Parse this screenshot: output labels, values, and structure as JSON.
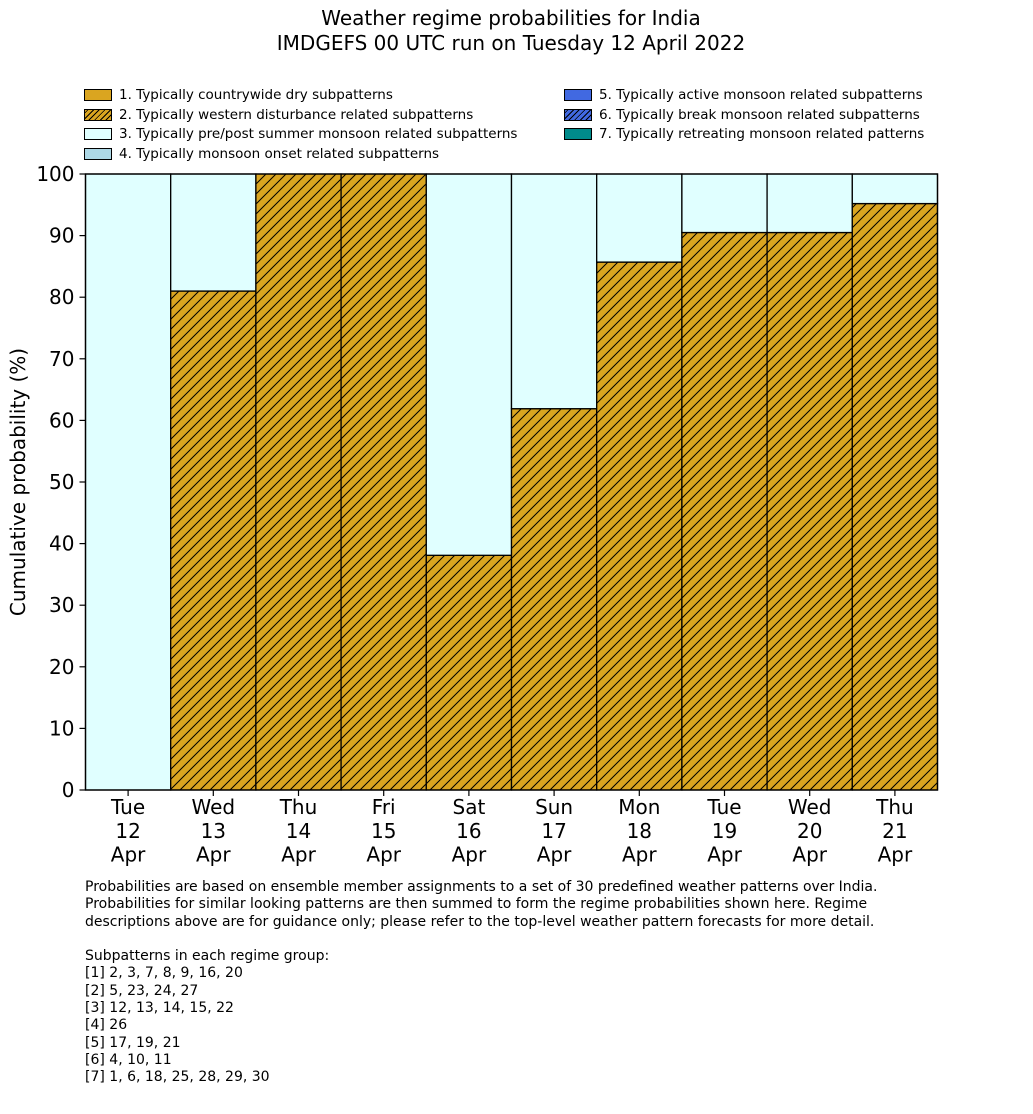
{
  "title_line1": "Weather regime probabilities for India",
  "title_line2": "IMDGEFS 00 UTC run on Tuesday 12 April 2022",
  "legend": [
    {
      "label": "1. Typically countrywide dry subpatterns",
      "color": "#DAA520",
      "hatch": false
    },
    {
      "label": "2. Typically western disturbance related subpatterns",
      "color": "#DAA520",
      "hatch": true
    },
    {
      "label": "3. Typically pre/post summer monsoon related subpatterns",
      "color": "#E0FFFF",
      "hatch": false
    },
    {
      "label": "4. Typically monsoon onset related subpatterns",
      "color": "#ADD8E6",
      "hatch": false
    },
    {
      "label": "5. Typically active monsoon related subpatterns",
      "color": "#4169E1",
      "hatch": false
    },
    {
      "label": "6. Typically break monsoon related subpatterns",
      "color": "#4169E1",
      "hatch": true
    },
    {
      "label": "7. Typically retreating monsoon related patterns",
      "color": "#008B8B",
      "hatch": false
    }
  ],
  "chart_data": {
    "type": "bar",
    "stacked": true,
    "title": "Weather regime probabilities for India\nIMDGEFS 00 UTC run on Tuesday 12 April 2022",
    "ylabel": "Cumulative probability (%)",
    "xlabel": "",
    "ylim": [
      0,
      100
    ],
    "yticks": [
      0,
      10,
      20,
      30,
      40,
      50,
      60,
      70,
      80,
      90,
      100
    ],
    "categories": [
      [
        "Tue",
        "12",
        "Apr"
      ],
      [
        "Wed",
        "13",
        "Apr"
      ],
      [
        "Thu",
        "14",
        "Apr"
      ],
      [
        "Fri",
        "15",
        "Apr"
      ],
      [
        "Sat",
        "16",
        "Apr"
      ],
      [
        "Sun",
        "17",
        "Apr"
      ],
      [
        "Mon",
        "18",
        "Apr"
      ],
      [
        "Tue",
        "19",
        "Apr"
      ],
      [
        "Wed",
        "20",
        "Apr"
      ],
      [
        "Thu",
        "21",
        "Apr"
      ]
    ],
    "series": [
      {
        "name": "1. Typically countrywide dry subpatterns",
        "color": "#DAA520",
        "hatch": false,
        "values": [
          0,
          0,
          0,
          0,
          0,
          0,
          0,
          0,
          0,
          0
        ]
      },
      {
        "name": "2. Typically western disturbance related subpatterns",
        "color": "#DAA520",
        "hatch": true,
        "values": [
          0,
          81,
          100,
          100,
          38.1,
          61.9,
          85.7,
          90.5,
          90.5,
          95.2
        ]
      },
      {
        "name": "3. Typically pre/post summer monsoon related subpatterns",
        "color": "#E0FFFF",
        "hatch": false,
        "values": [
          100,
          19,
          0,
          0,
          61.9,
          38.1,
          14.3,
          9.5,
          9.5,
          4.8
        ]
      },
      {
        "name": "4. Typically monsoon onset related subpatterns",
        "color": "#ADD8E6",
        "hatch": false,
        "values": [
          0,
          0,
          0,
          0,
          0,
          0,
          0,
          0,
          0,
          0
        ]
      },
      {
        "name": "5. Typically active monsoon related subpatterns",
        "color": "#4169E1",
        "hatch": false,
        "values": [
          0,
          0,
          0,
          0,
          0,
          0,
          0,
          0,
          0,
          0
        ]
      },
      {
        "name": "6. Typically break monsoon related subpatterns",
        "color": "#4169E1",
        "hatch": true,
        "values": [
          0,
          0,
          0,
          0,
          0,
          0,
          0,
          0,
          0,
          0
        ]
      },
      {
        "name": "7. Typically retreating monsoon related patterns",
        "color": "#008B8B",
        "hatch": false,
        "values": [
          0,
          0,
          0,
          0,
          0,
          0,
          0,
          0,
          0,
          0
        ]
      }
    ],
    "grid": false,
    "legend_position": "top"
  },
  "notes": {
    "paragraph": [
      "Probabilities are based on ensemble member assignments to a set of 30 predefined weather patterns over India.",
      "Probabilities for similar looking patterns are then summed to form the regime probabilities shown here. Regime",
      "descriptions above are for guidance only; please refer to the top-level weather pattern forecasts for more detail."
    ],
    "subpatterns_heading": "Subpatterns in each regime group:",
    "subpatterns": [
      "[1] 2, 3, 7, 8, 9, 16, 20",
      "[2] 5, 23, 24, 27",
      "[3] 12, 13, 14, 15, 22",
      "[4] 26",
      "[5] 17, 19, 21",
      "[6] 4, 10, 11",
      "[7] 1, 6, 18, 25, 28, 29, 30"
    ]
  }
}
